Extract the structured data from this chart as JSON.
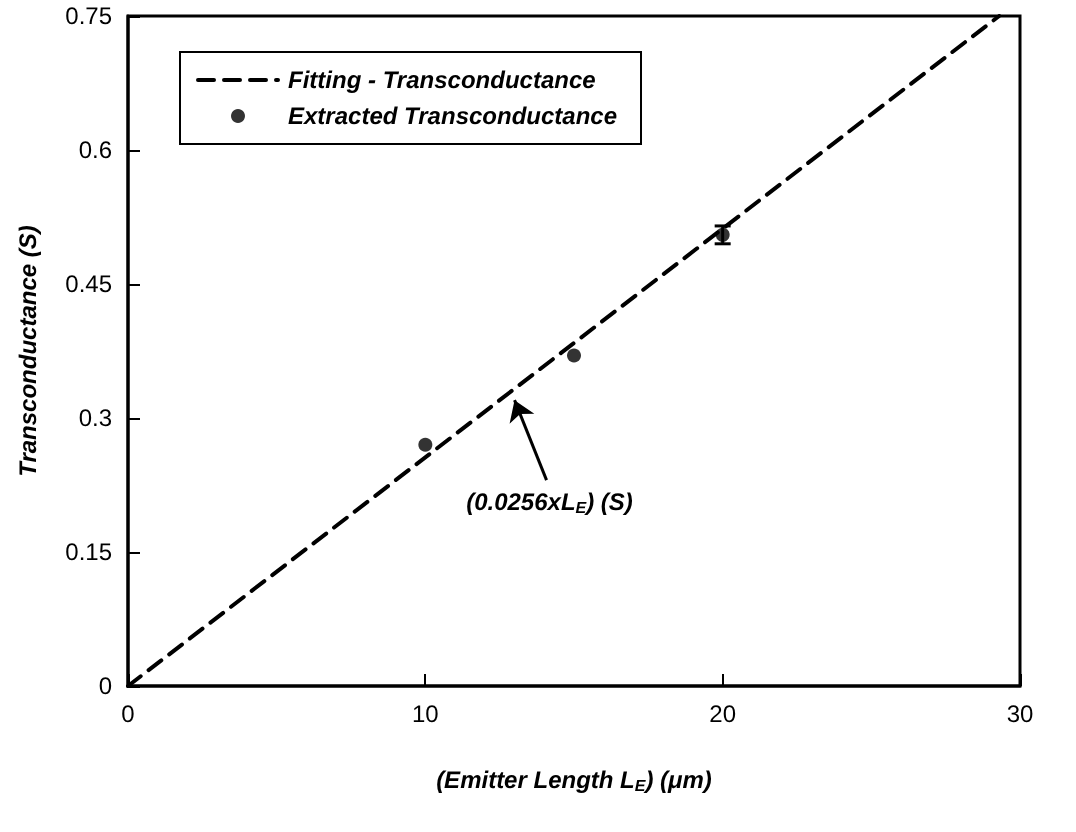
{
  "chart_data": {
    "type": "scatter",
    "xlabel": "(Emitter Length L$_{E}$) (μm)",
    "ylabel": "Transconductance (S)",
    "xlim": [
      0,
      30
    ],
    "xticks": [
      0,
      10,
      20,
      30
    ],
    "ylim": [
      0,
      0.75
    ],
    "yticks": [
      0,
      0.15,
      0.3,
      0.45,
      0.6,
      0.75
    ],
    "series": [
      {
        "name": "Fitting - Transconductance",
        "type": "line",
        "line_style": "dashed",
        "marker": "none",
        "color": "#000000",
        "x": [
          0,
          29.3
        ],
        "values": [
          0,
          0.75
        ]
      },
      {
        "name": "Extracted Transconductance",
        "type": "scatter",
        "marker": "circle",
        "color": "#000000",
        "x": [
          10,
          15,
          20
        ],
        "values": [
          0.27,
          0.37,
          0.505
        ],
        "errors": [
          null,
          null,
          0.01
        ]
      }
    ],
    "annotations": [
      {
        "text": "(0.0256xL$_{E}$) (S)",
        "x": 13,
        "y": 0.32
      }
    ],
    "legend": "top left",
    "grid": false
  }
}
